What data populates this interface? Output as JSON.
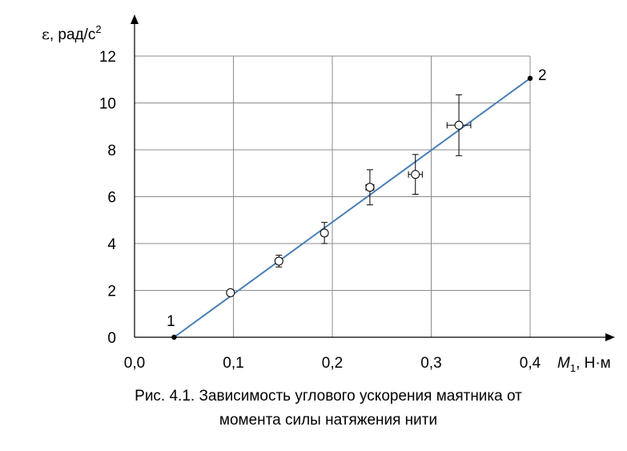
{
  "chart_data": {
    "type": "scatter",
    "title": "",
    "xlabel": {
      "symbol": "M",
      "subscript": "1",
      "unit": ", Н·м"
    },
    "ylabel": {
      "symbol": "ε",
      "unit": ", рад/с",
      "superscript": "2"
    },
    "xlim": [
      0,
      0.4
    ],
    "ylim": [
      0,
      12
    ],
    "xticks": [
      0,
      0.1,
      0.2,
      0.3,
      0.4
    ],
    "xtick_labels": [
      "0,0",
      "0,1",
      "0,2",
      "0,3",
      "0,4"
    ],
    "yticks": [
      0,
      2,
      4,
      6,
      8,
      10,
      12
    ],
    "ytick_labels": [
      "0",
      "2",
      "4",
      "6",
      "8",
      "10",
      "12"
    ],
    "grid": true,
    "legend": "none",
    "series": [
      {
        "kind": "points-with-errorbars",
        "points": [
          {
            "x": 0.097,
            "y": 1.9,
            "xerr": 0.0,
            "yerr": 0.0
          },
          {
            "x": 0.146,
            "y": 3.25,
            "xerr": 0.003,
            "yerr": 0.25
          },
          {
            "x": 0.192,
            "y": 4.45,
            "xerr": 0.003,
            "yerr": 0.45
          },
          {
            "x": 0.238,
            "y": 6.4,
            "xerr": 0.004,
            "yerr": 0.75
          },
          {
            "x": 0.284,
            "y": 6.95,
            "xerr": 0.007,
            "yerr": 0.85
          },
          {
            "x": 0.328,
            "y": 9.05,
            "xerr": 0.012,
            "yerr": 1.3
          }
        ]
      },
      {
        "kind": "fit-line",
        "color": "#4a7fb5",
        "points": [
          {
            "x": 0.04,
            "y": 0.0
          },
          {
            "x": 0.4,
            "y": 11.05
          }
        ]
      }
    ],
    "annotations": [
      {
        "text": "1",
        "x": 0.04,
        "y": 0.0
      },
      {
        "text": "2",
        "x": 0.4,
        "y": 11.05
      }
    ]
  },
  "caption": {
    "line1": "Рис. 4.1. Зависимость углового ускорения маятника от",
    "line2": "момента силы натяжения нити"
  }
}
